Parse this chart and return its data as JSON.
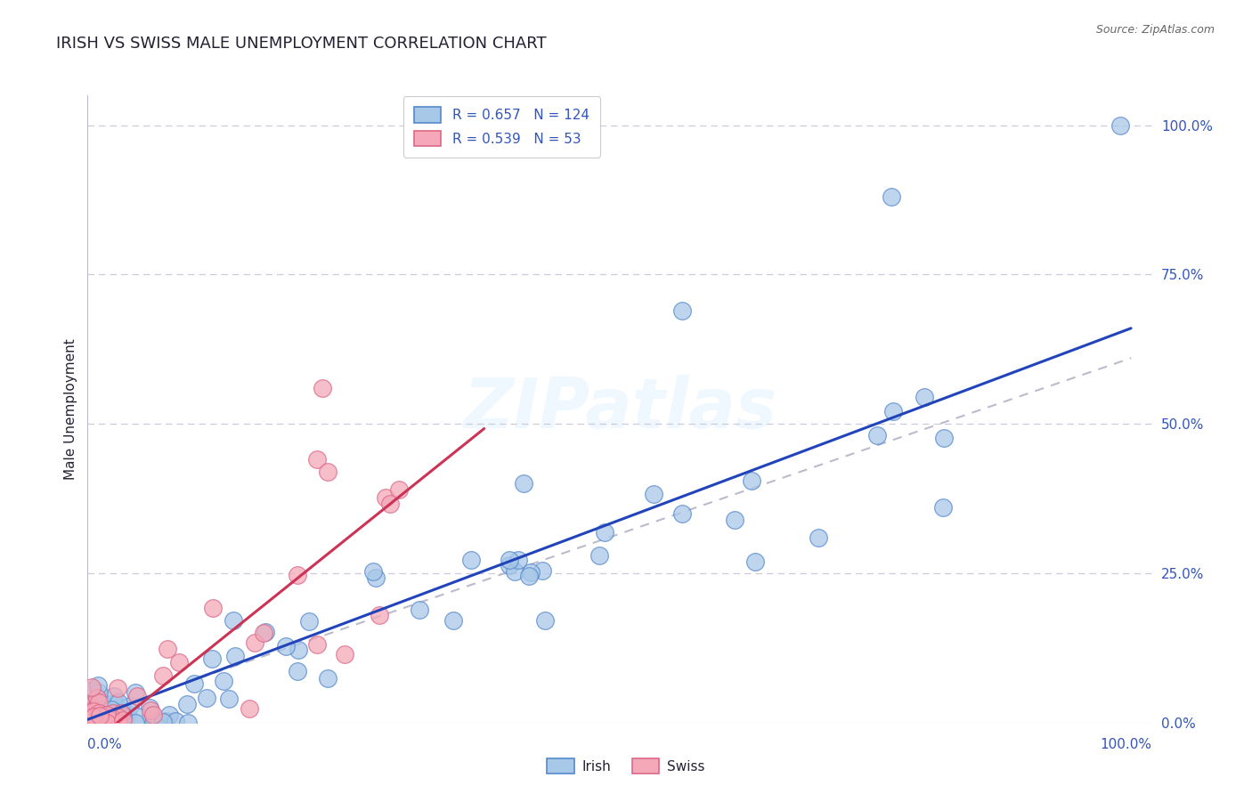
{
  "title": "IRISH VS SWISS MALE UNEMPLOYMENT CORRELATION CHART",
  "source": "Source: ZipAtlas.com",
  "ylabel": "Male Unemployment",
  "ytick_labels": [
    "0.0%",
    "25.0%",
    "50.0%",
    "75.0%",
    "100.0%"
  ],
  "ytick_values": [
    0.0,
    0.25,
    0.5,
    0.75,
    1.0
  ],
  "xlim": [
    0.0,
    1.0
  ],
  "ylim": [
    0.0,
    1.0
  ],
  "irish_R": 0.657,
  "irish_N": 124,
  "swiss_R": 0.539,
  "swiss_N": 53,
  "irish_color": "#A8C8E8",
  "swiss_color": "#F4A8B8",
  "irish_edge_color": "#5588CC",
  "swiss_edge_color": "#DD6688",
  "irish_line_color": "#2244BB",
  "swiss_line_color": "#CC3355",
  "dashed_line_color": "#BBBBCC",
  "title_color": "#222233",
  "source_color": "#666666",
  "axis_label_color": "#3355BB",
  "legend_text_color": "#3355BB",
  "background_color": "#FFFFFF",
  "grid_color": "#CCCCDD",
  "title_fontsize": 13,
  "source_fontsize": 9,
  "axis_tick_fontsize": 11,
  "ylabel_fontsize": 11,
  "legend_fontsize": 11,
  "irish_line_intercept": 0.005,
  "irish_line_slope": 0.655,
  "swiss_line_intercept": -0.04,
  "swiss_line_slope": 1.4,
  "swiss_line_xmax": 0.38,
  "dashed_line_intercept": 0.01,
  "dashed_line_slope": 0.6
}
